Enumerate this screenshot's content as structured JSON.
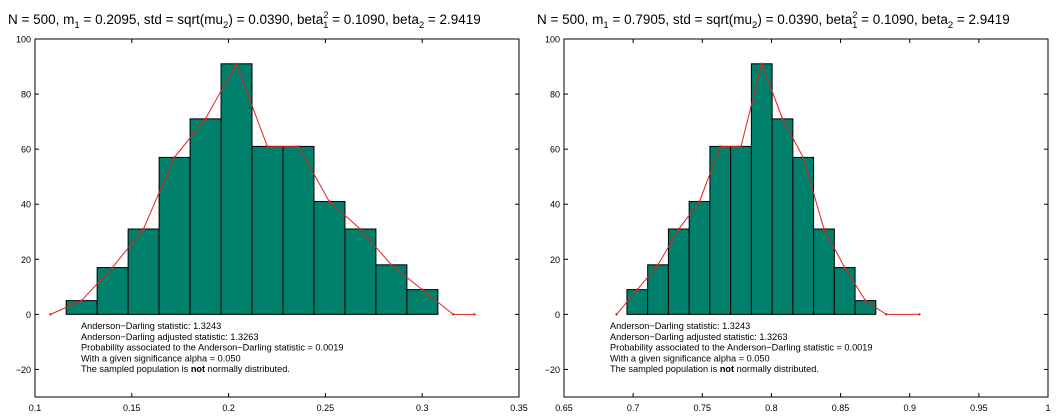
{
  "chart_data": [
    {
      "type": "bar",
      "title": {
        "prefix": "N =  500, m",
        "m_sub": "1",
        "m_val": " = 0.2095, std = sqrt(mu",
        "mu_sub": "2",
        "mu_val": ") = 0.0390, beta",
        "b1_sup": "2",
        "b1_sub": "1",
        "b1_val": " = 0.1090, beta",
        "b2_sub": "2",
        "b2_val": " = 2.9419"
      },
      "xlim": [
        0.1,
        0.35
      ],
      "ylim": [
        -30,
        100
      ],
      "xticks": [
        0.1,
        0.15,
        0.2,
        0.25,
        0.3,
        0.35
      ],
      "xtick_labels": [
        "0.1",
        "0.15",
        "0.2",
        "0.25",
        "0.3",
        "0.35"
      ],
      "yticks": [
        -20,
        0,
        20,
        40,
        60,
        80,
        100
      ],
      "ytick_labels": [
        "−20",
        "0",
        "20",
        "40",
        "60",
        "80",
        "100"
      ],
      "bar_edges": [
        0.1161,
        0.1321,
        0.1481,
        0.1641,
        0.1801,
        0.1961,
        0.2121,
        0.2281,
        0.2441,
        0.2601,
        0.2761,
        0.2921,
        0.3081
      ],
      "bar_values": [
        5,
        17,
        31,
        57,
        71,
        91,
        61,
        61,
        41,
        31,
        18,
        9
      ],
      "line": {
        "x": [
          0.108,
          0.124,
          0.14,
          0.156,
          0.172,
          0.188,
          0.204,
          0.22,
          0.236,
          0.252,
          0.268,
          0.284,
          0.3,
          0.316,
          0.327
        ],
        "y": [
          0,
          5,
          17,
          31,
          57,
          71,
          91,
          61,
          61,
          41,
          31,
          18,
          9,
          0,
          0
        ]
      },
      "annotations": [
        "Anderson−Darling statistic: 1.3243",
        "Anderson−Darling adjusted statistic: 1.3263",
        "Probability associated to the Anderson−Darling statistic = 0.0019",
        "With a given significance alpha = 0.050"
      ],
      "conclusion": {
        "pre": "The sampled population is  ",
        "bold": "not",
        "post": " normally distributed."
      },
      "bar_color": "#00806a",
      "line_color": "#e02020"
    },
    {
      "type": "bar",
      "title": {
        "prefix": "N =  500, m",
        "m_sub": "1",
        "m_val": " = 0.7905, std = sqrt(mu",
        "mu_sub": "2",
        "mu_val": ") = 0.0390, beta",
        "b1_sup": "2",
        "b1_sub": "1",
        "b1_val": " = 0.1090, beta",
        "b2_sub": "2",
        "b2_val": " = 2.9419"
      },
      "xlim": [
        0.65,
        1
      ],
      "ylim": [
        -30,
        100
      ],
      "xticks": [
        0.65,
        0.7,
        0.75,
        0.8,
        0.85,
        0.9,
        0.95,
        1
      ],
      "xtick_labels": [
        "0.65",
        "0.7",
        "0.75",
        "0.8",
        "0.85",
        "0.9",
        "0.95",
        "1"
      ],
      "yticks": [
        -20,
        0,
        20,
        40,
        60,
        80,
        100
      ],
      "ytick_labels": [
        "−20",
        "0",
        "20",
        "40",
        "60",
        "80",
        "100"
      ],
      "bar_edges": [
        0.6955,
        0.7105,
        0.7255,
        0.7405,
        0.7555,
        0.7705,
        0.7855,
        0.8005,
        0.8155,
        0.8305,
        0.8455,
        0.8605,
        0.8755
      ],
      "bar_values": [
        9,
        18,
        31,
        41,
        61,
        61,
        91,
        71,
        57,
        31,
        17,
        5
      ],
      "line": {
        "x": [
          0.688,
          0.703,
          0.718,
          0.733,
          0.748,
          0.763,
          0.778,
          0.793,
          0.808,
          0.823,
          0.838,
          0.853,
          0.868,
          0.883,
          0.907
        ],
        "y": [
          0,
          9,
          18,
          31,
          41,
          61,
          61,
          91,
          71,
          57,
          31,
          17,
          5,
          0,
          0
        ]
      },
      "annotations": [
        "Anderson−Darling statistic: 1.3243",
        "Anderson−Darling adjusted statistic: 1.3263",
        "Probability associated to the Anderson−Darling statistic = 0.0019",
        "With a given significance alpha = 0.050"
      ],
      "conclusion": {
        "pre": "The sampled population is  ",
        "bold": "not",
        "post": " normally distributed."
      },
      "bar_color": "#00806a",
      "line_color": "#e02020"
    }
  ]
}
